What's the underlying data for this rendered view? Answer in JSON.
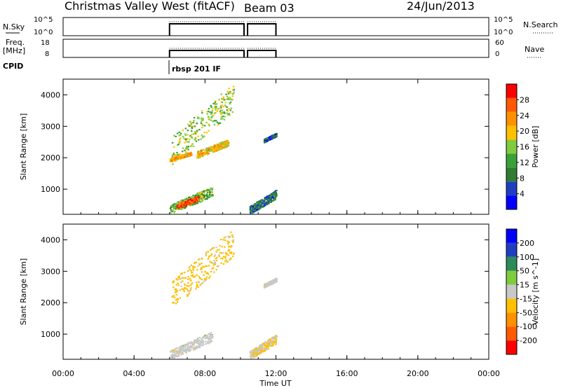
{
  "header": {
    "title": "Christmas Valley West (fitACF)",
    "beam": "Beam 03",
    "date": "24/Jun/2013"
  },
  "panels": {
    "nsky": {
      "label": "N.Sky",
      "ticks": [
        "10^5",
        "10^0"
      ],
      "right_ticks": [
        "10^5",
        "10^0"
      ],
      "right_label": "N.Search"
    },
    "freq": {
      "label1": "Freq.",
      "label2": "[MHz]",
      "ticks": [
        "18",
        "8"
      ],
      "right_ticks": [
        "60",
        "0"
      ],
      "right_label": "Nave"
    },
    "cpid": {
      "label": "CPID",
      "program": "rbsp 201 IF"
    }
  },
  "colors": {
    "power": [
      "#0000ff",
      "#1f3fbf",
      "#2e7d32",
      "#3aa03a",
      "#7fcc3f",
      "#ffc000",
      "#ff9000",
      "#ff5a00",
      "#ff0000"
    ],
    "velocity": [
      "#ff0000",
      "#ff5a00",
      "#ff9000",
      "#ffc000",
      "#c8c8c8",
      "#7fcc3f",
      "#2e8b57",
      "#1f3fbf",
      "#0000ff"
    ]
  },
  "chart_data": [
    {
      "type": "heatmap",
      "name": "power",
      "xlabel": "Time UT",
      "ylabel": "Slant Range [km]",
      "colorbar_label": "Power [dB]",
      "colorbar_ticks": [
        "28",
        "24",
        "20",
        "16",
        "12",
        "8",
        "4"
      ],
      "colorbar_range": [
        0,
        32
      ],
      "ylim": [
        200,
        4500
      ],
      "yticks": [
        "4000",
        "3000",
        "2000",
        "1000"
      ],
      "ytick_values": [
        4000,
        3000,
        2000,
        1000
      ],
      "xlim": [
        0,
        24
      ],
      "xticks": [
        "00:00",
        "04:00",
        "08:00",
        "12:00",
        "16:00",
        "20:00",
        "00:00"
      ],
      "xtick_values": [
        0,
        4,
        8,
        12,
        16,
        20,
        24
      ],
      "echo_bands": [
        {
          "t0": 6.1,
          "t1": 9.6,
          "r0": 1800,
          "r1": 4400,
          "value": 16
        },
        {
          "t0": 6.0,
          "t1": 7.2,
          "r0": 1900,
          "r1": 2200,
          "value": 22
        },
        {
          "t0": 7.5,
          "t1": 9.3,
          "r0": 2000,
          "r1": 2600,
          "value": 20
        },
        {
          "t0": 6.0,
          "t1": 8.4,
          "r0": 200,
          "r1": 1100,
          "value": 14
        },
        {
          "t0": 6.4,
          "t1": 7.6,
          "r0": 400,
          "r1": 800,
          "value": 28
        },
        {
          "t0": 10.5,
          "t1": 12.0,
          "r0": 200,
          "r1": 1000,
          "value": 8
        },
        {
          "t0": 11.3,
          "t1": 12.0,
          "r0": 2500,
          "r1": 2800,
          "value": 6
        }
      ]
    },
    {
      "type": "heatmap",
      "name": "velocity",
      "xlabel": "Time UT",
      "ylabel": "Slant Range [km]",
      "colorbar_label": "Velocity [m s^-1]",
      "colorbar_ticks": [
        "200",
        "100",
        "50",
        "15",
        "-15",
        "-50",
        "-100",
        "-200"
      ],
      "ylim": [
        200,
        4500
      ],
      "yticks": [
        "4000",
        "3000",
        "2000",
        "1000"
      ],
      "ytick_values": [
        4000,
        3000,
        2000,
        1000
      ],
      "xlim": [
        0,
        24
      ],
      "xticks": [
        "00:00",
        "04:00",
        "08:00",
        "12:00",
        "16:00",
        "20:00",
        "00:00"
      ],
      "xtick_values": [
        0,
        4,
        8,
        12,
        16,
        20,
        24
      ],
      "echo_bands": [
        {
          "t0": 6.1,
          "t1": 9.6,
          "r0": 1800,
          "r1": 4400,
          "value": -50
        },
        {
          "t0": 6.0,
          "t1": 8.4,
          "r0": 200,
          "r1": 1100,
          "value": 0
        },
        {
          "t0": 10.5,
          "t1": 12.0,
          "r0": 200,
          "r1": 1000,
          "value": -30
        },
        {
          "t0": 11.3,
          "t1": 12.0,
          "r0": 2500,
          "r1": 2800,
          "value": 0
        }
      ]
    }
  ]
}
